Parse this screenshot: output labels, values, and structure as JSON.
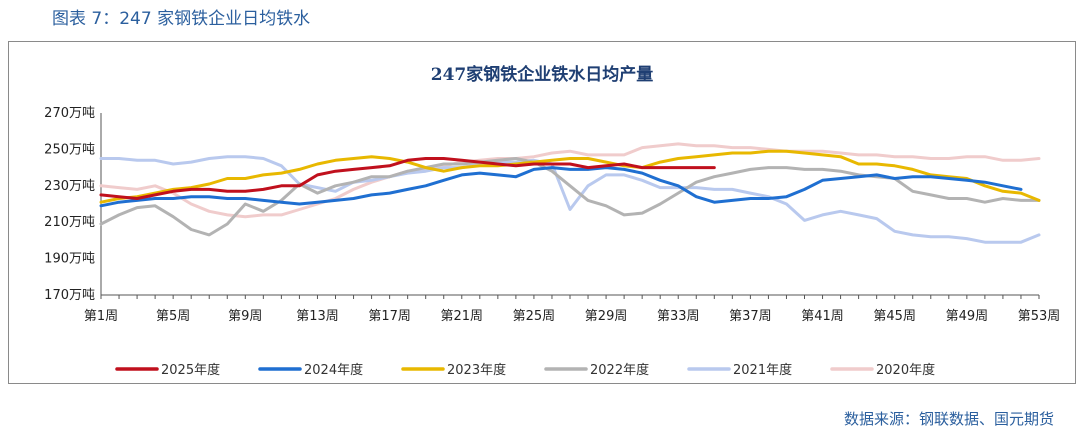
{
  "figure": {
    "caption": "图表 7：247 家钢铁企业日均铁水",
    "source": "数据来源：钢联数据、国元期货"
  },
  "chart_data": {
    "type": "line",
    "title": "247家钢铁企业铁水日均产量",
    "xlabel": "",
    "ylabel": "",
    "ylim": [
      170,
      270
    ],
    "y_ticks": [
      "170万吨",
      "190万吨",
      "210万吨",
      "230万吨",
      "250万吨",
      "270万吨"
    ],
    "x_ticks": [
      "第1周",
      "第5周",
      "第9周",
      "第13周",
      "第17周",
      "第21周",
      "第25周",
      "第29周",
      "第33周",
      "第37周",
      "第41周",
      "第45周",
      "第49周",
      "第53周"
    ],
    "x_range": [
      1,
      53
    ],
    "legend_position": "bottom",
    "series": [
      {
        "name": "2025年度",
        "color": "#c0101d",
        "values": [
          225,
          224,
          223,
          225,
          227,
          228,
          228,
          227,
          227,
          228,
          230,
          230,
          236,
          238,
          239,
          240,
          241,
          244,
          245,
          245,
          244,
          243,
          242,
          241,
          242,
          242,
          242,
          240,
          241,
          242,
          240,
          240,
          240,
          240,
          240
        ]
      },
      {
        "name": "2024年度",
        "color": "#1f6fd1",
        "values": [
          219,
          221,
          222,
          223,
          223,
          224,
          224,
          223,
          223,
          222,
          221,
          220,
          221,
          222,
          223,
          225,
          226,
          228,
          230,
          233,
          236,
          237,
          236,
          235,
          239,
          240,
          239,
          239,
          240,
          239,
          237,
          233,
          230,
          224,
          221,
          222,
          223,
          223,
          224,
          228,
          233,
          234,
          235,
          236,
          234,
          235,
          235,
          234,
          233,
          232,
          230,
          228
        ]
      },
      {
        "name": "2023年度",
        "color": "#e8b800",
        "values": [
          221,
          223,
          224,
          226,
          228,
          229,
          231,
          234,
          234,
          236,
          237,
          239,
          242,
          244,
          245,
          246,
          245,
          243,
          240,
          238,
          240,
          241,
          241,
          242,
          243,
          244,
          245,
          245,
          243,
          241,
          240,
          243,
          245,
          246,
          247,
          248,
          248,
          249,
          249,
          248,
          247,
          246,
          242,
          242,
          241,
          239,
          236,
          235,
          234,
          230,
          227,
          226,
          222
        ]
      },
      {
        "name": "2022年度",
        "color": "#b3b3b3",
        "values": [
          209,
          214,
          218,
          219,
          213,
          206,
          203,
          209,
          220,
          216,
          222,
          231,
          226,
          230,
          232,
          235,
          235,
          238,
          240,
          242,
          242,
          243,
          244,
          245,
          243,
          238,
          230,
          222,
          219,
          214,
          215,
          220,
          226,
          232,
          235,
          237,
          239,
          240,
          240,
          239,
          239,
          238,
          236,
          235,
          234,
          227,
          225,
          223,
          223,
          221,
          223,
          222,
          222
        ]
      },
      {
        "name": "2021年度",
        "color": "#b9c9ee",
        "values": [
          245,
          245,
          244,
          244,
          242,
          243,
          245,
          246,
          246,
          245,
          241,
          231,
          229,
          227,
          232,
          233,
          235,
          237,
          238,
          240,
          240,
          242,
          243,
          243,
          244,
          242,
          217,
          230,
          236,
          236,
          233,
          229,
          229,
          229,
          228,
          228,
          226,
          224,
          220,
          211,
          214,
          216,
          214,
          212,
          205,
          203,
          202,
          202,
          201,
          199,
          199,
          199,
          203
        ]
      },
      {
        "name": "2020年度",
        "color": "#f0cccc",
        "values": [
          230,
          229,
          228,
          230,
          226,
          220,
          216,
          214,
          213,
          214,
          214,
          217,
          220,
          223,
          228,
          232,
          235,
          238,
          239,
          241,
          243,
          244,
          245,
          245,
          246,
          248,
          249,
          247,
          247,
          247,
          251,
          252,
          253,
          252,
          252,
          251,
          251,
          250,
          249,
          249,
          249,
          248,
          247,
          247,
          246,
          246,
          245,
          245,
          246,
          246,
          244,
          244,
          245
        ]
      }
    ]
  }
}
